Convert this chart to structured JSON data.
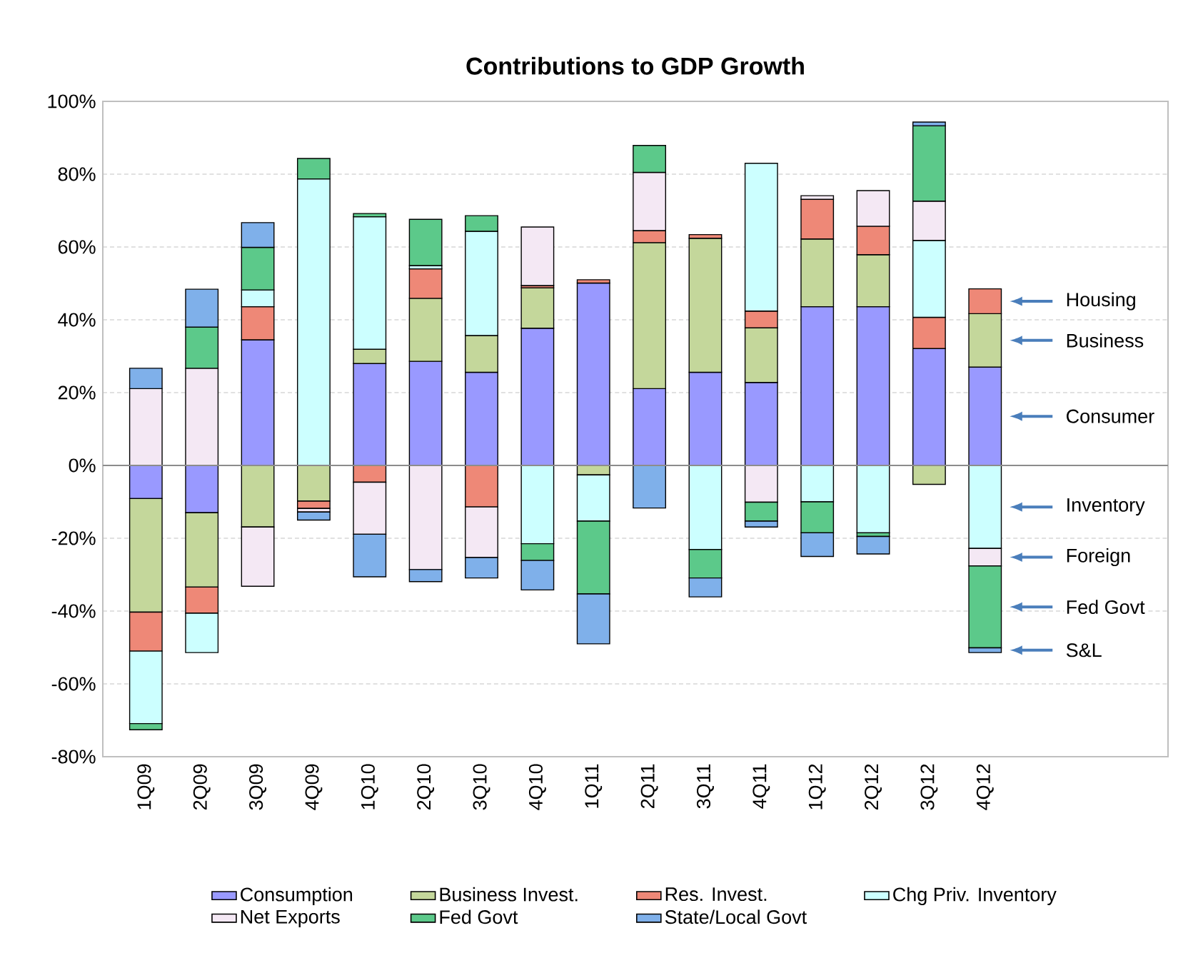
{
  "chart_data": {
    "type": "bar",
    "stacked": true,
    "title": "Contributions to GDP Growth",
    "categories": [
      "1Q09",
      "2Q09",
      "3Q09",
      "4Q09",
      "1Q10",
      "2Q10",
      "3Q10",
      "4Q10",
      "1Q11",
      "2Q11",
      "3Q11",
      "4Q11",
      "1Q12",
      "2Q12",
      "3Q12",
      "4Q12"
    ],
    "series": [
      {
        "name": "Consumption",
        "color": "#9999ff",
        "values": [
          -9.1,
          -13.0,
          34.5,
          0,
          28.0,
          28.6,
          25.6,
          37.7,
          50.1,
          21.1,
          25.6,
          22.8,
          43.6,
          43.6,
          32.1,
          27.0
        ]
      },
      {
        "name": "Business Invest.",
        "color": "#c4d79b",
        "values": [
          -31.2,
          -20.4,
          -16.9,
          -9.8,
          3.9,
          17.3,
          10.1,
          11.1,
          -2.6,
          40.1,
          36.8,
          15.0,
          18.6,
          14.3,
          -5.2,
          14.7
        ]
      },
      {
        "name": "Res. Invest.",
        "color": "#ee8877",
        "values": [
          -10.7,
          -7.2,
          9.1,
          -2.0,
          -4.6,
          8.1,
          -11.4,
          0.6,
          0.9,
          3.3,
          1.0,
          4.6,
          10.9,
          7.8,
          8.6,
          6.8
        ]
      },
      {
        "name": "Chg Priv. Inventory",
        "color": "#ccffff",
        "values": [
          -19.9,
          -10.8,
          4.6,
          78.7,
          36.4,
          0.9,
          28.6,
          -21.5,
          -12.7,
          0,
          -23.1,
          40.6,
          -10.0,
          -18.5,
          21.1,
          -22.8
        ]
      },
      {
        "name": "Net Exports",
        "color": "#f4e8f4",
        "values": [
          21.1,
          26.7,
          -16.3,
          -1.0,
          -14.3,
          -28.6,
          -13.9,
          16.1,
          0,
          16.0,
          0,
          -10.1,
          1.0,
          9.8,
          10.8,
          -4.8
        ]
      },
      {
        "name": "Fed Govt",
        "color": "#5cc98a",
        "values": [
          -1.7,
          11.3,
          11.7,
          5.6,
          0.9,
          12.7,
          4.3,
          -4.6,
          -20.0,
          7.4,
          -7.8,
          -5.2,
          -8.5,
          -1.0,
          20.7,
          -22.5
        ]
      },
      {
        "name": "State/Local Govt",
        "color": "#7fb0ea",
        "values": [
          5.6,
          10.4,
          6.8,
          -2.2,
          -11.7,
          -3.3,
          -5.6,
          -8.1,
          -13.7,
          -11.7,
          -5.2,
          -1.6,
          -6.5,
          -4.8,
          1.0,
          -1.3
        ]
      }
    ],
    "ylim": [
      -80,
      100
    ],
    "yticks": [
      {
        "value": -80,
        "label": "-80%"
      },
      {
        "value": -60,
        "label": "-60%"
      },
      {
        "value": -40,
        "label": "-40%"
      },
      {
        "value": -20,
        "label": "-20%"
      },
      {
        "value": 0,
        "label": "0%"
      },
      {
        "value": 20,
        "label": "20%"
      },
      {
        "value": 40,
        "label": "40%"
      },
      {
        "value": 60,
        "label": "60%"
      },
      {
        "value": 80,
        "label": "80%"
      },
      {
        "value": 100,
        "label": "100%"
      }
    ],
    "grid": "y",
    "legend": "bottom",
    "annotations": [
      "Housing",
      "Business",
      "Consumer",
      "Inventory",
      "Foreign",
      "Fed Govt",
      "S&L"
    ]
  }
}
